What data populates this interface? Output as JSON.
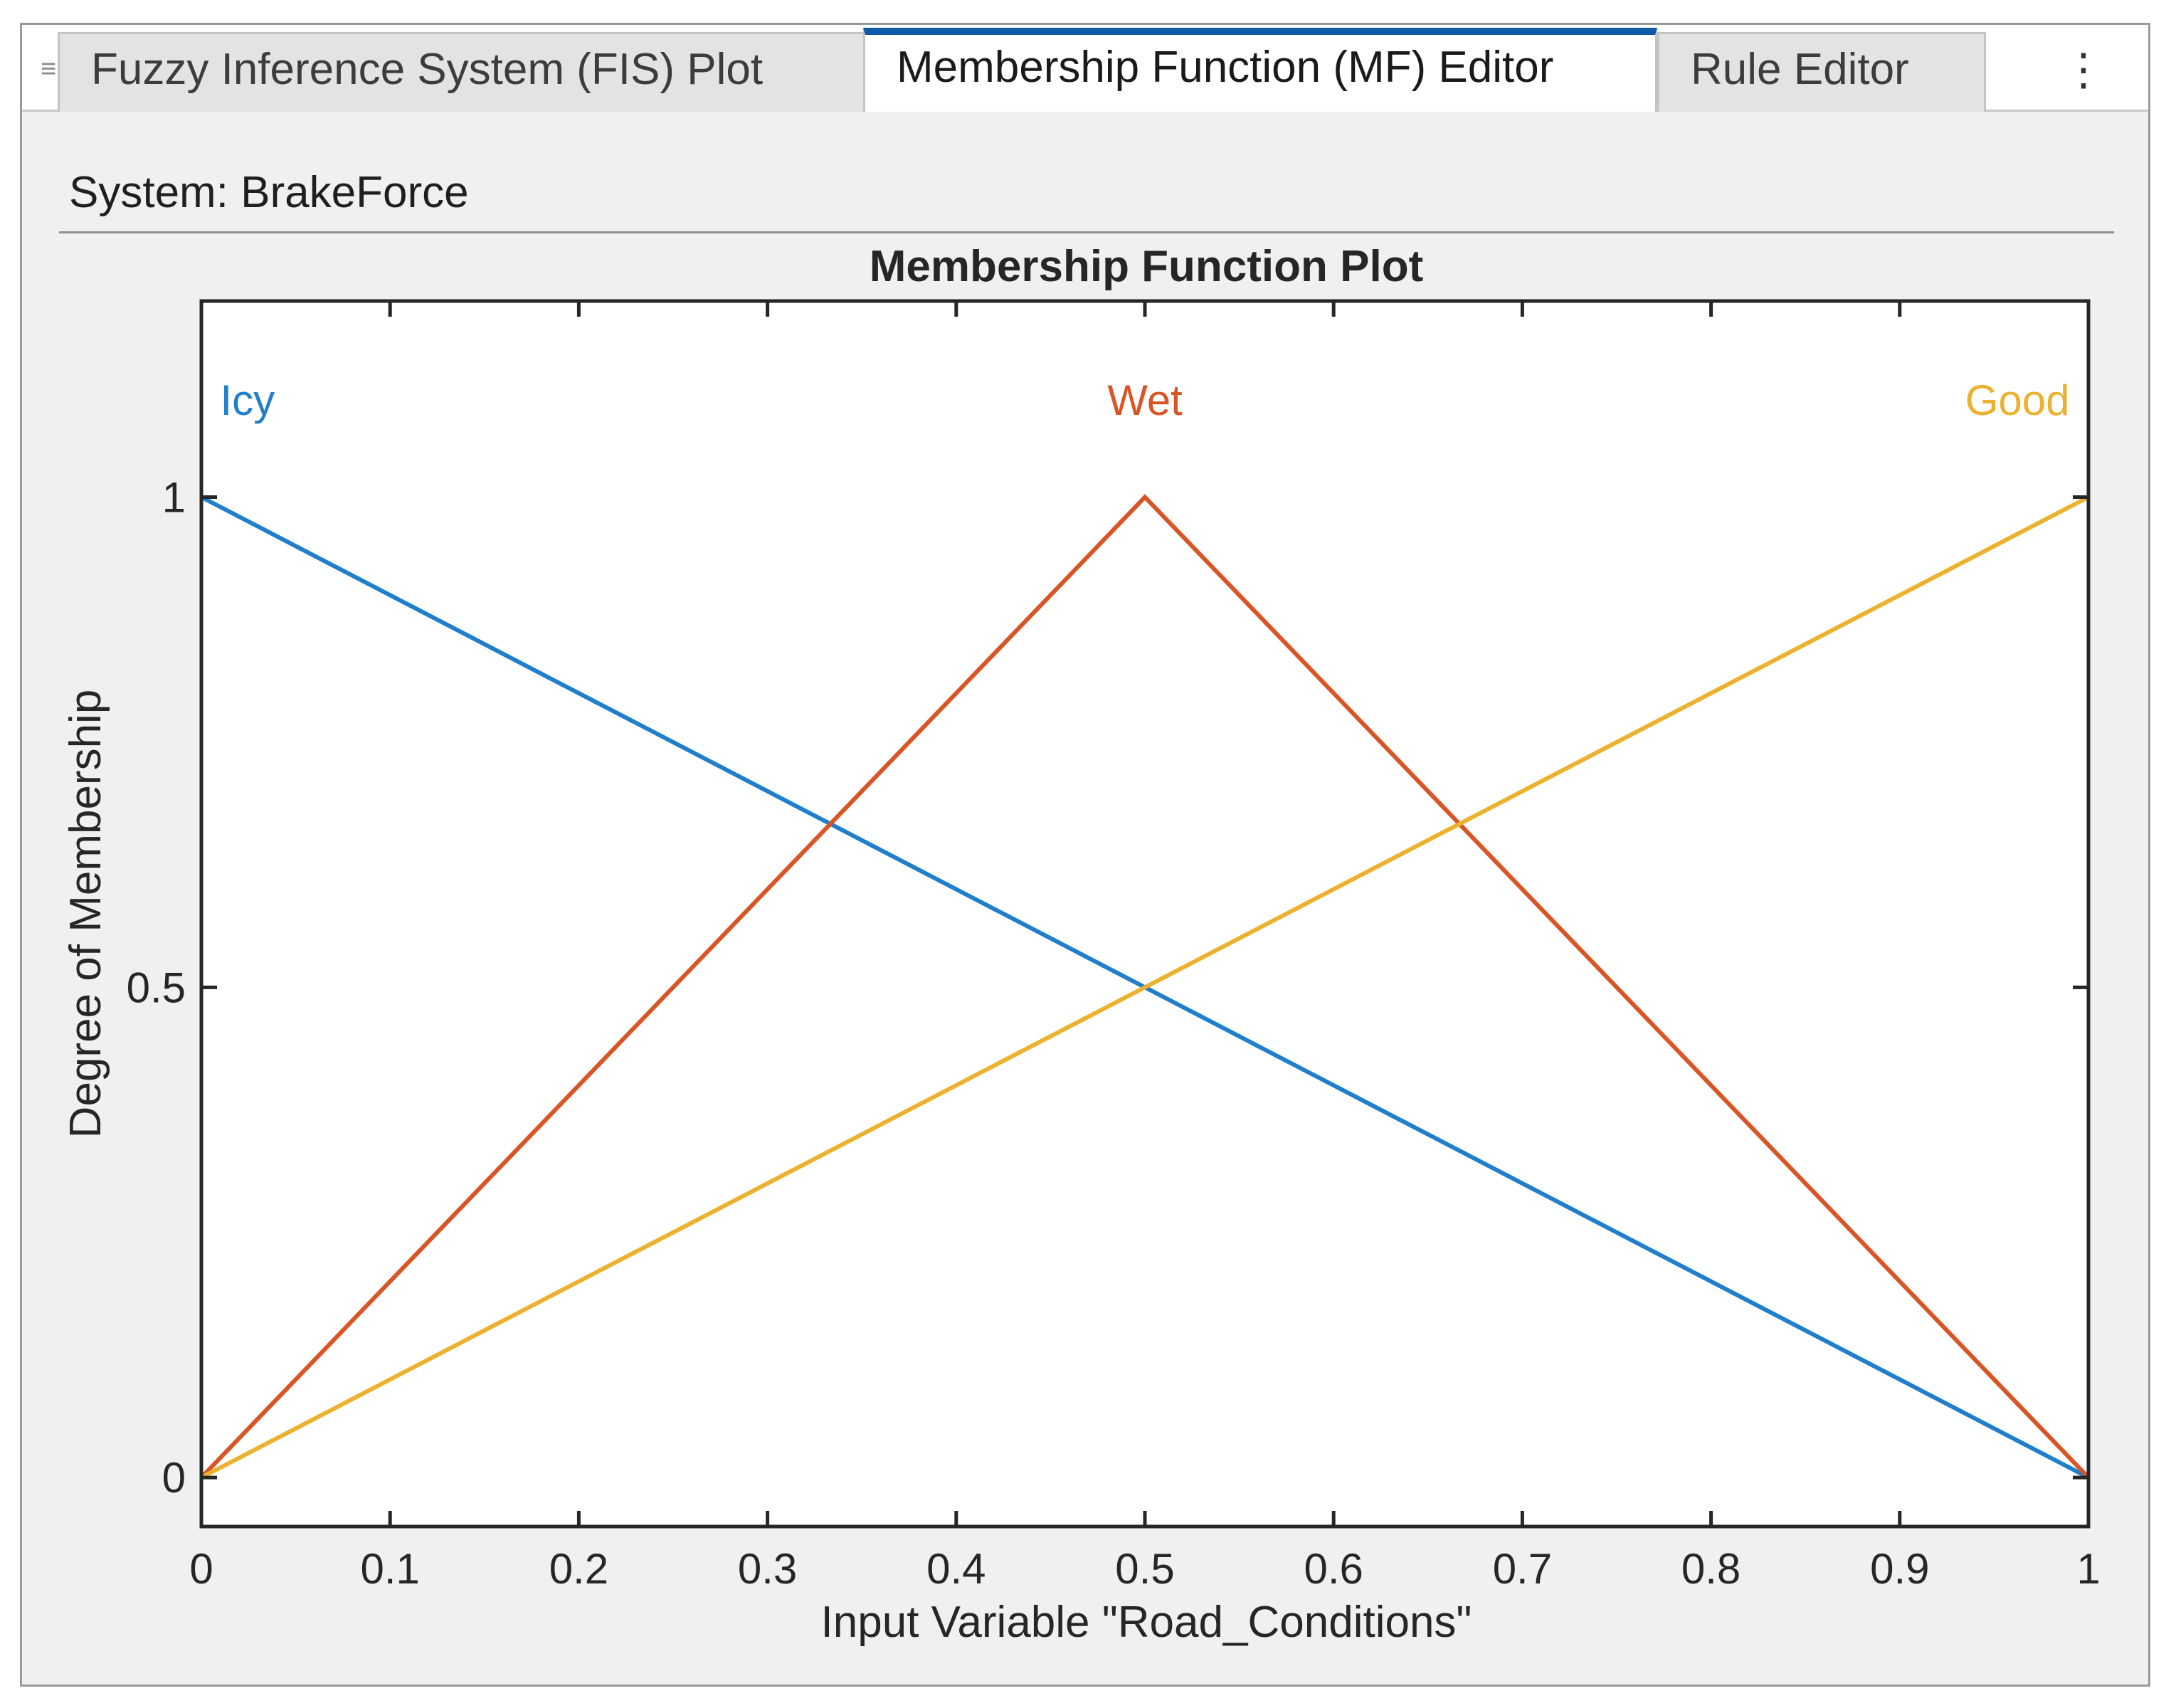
{
  "tabs": [
    {
      "label": "Fuzzy Inference System (FIS) Plot",
      "active": false
    },
    {
      "label": "Membership Function (MF) Editor",
      "active": true
    },
    {
      "label": "Rule Editor",
      "active": false
    }
  ],
  "menu_icon": "more-vertical-icon",
  "menu_glyph": "⋮",
  "grip_glyph": "≡",
  "system": {
    "label": "System: BrakeForce"
  },
  "colors": {
    "active_tab_accent": "#0e5aa7",
    "icy": "#1f7fcc",
    "wet": "#d95525",
    "good": "#ecb22f"
  },
  "chart_data": {
    "type": "line",
    "title": "Membership Function Plot",
    "xlabel": "Input Variable \"Road_Conditions\"",
    "ylabel": "Degree of Membership",
    "xlim": [
      0,
      1
    ],
    "ylim": [
      -0.05,
      1.2
    ],
    "xticks": [
      0,
      0.1,
      0.2,
      0.3,
      0.4,
      0.5,
      0.6,
      0.7,
      0.8,
      0.9,
      1
    ],
    "xtick_labels": [
      "0",
      "0.1",
      "0.2",
      "0.3",
      "0.4",
      "0.5",
      "0.6",
      "0.7",
      "0.8",
      "0.9",
      "1"
    ],
    "yticks": [
      0,
      0.5,
      1
    ],
    "ytick_labels": [
      "0",
      "0.5",
      "1"
    ],
    "grid": false,
    "series": [
      {
        "name": "Icy",
        "color": "#1f7fcc",
        "x": [
          0,
          1
        ],
        "y": [
          1,
          0
        ],
        "label_x": 0.01
      },
      {
        "name": "Wet",
        "color": "#d95525",
        "x": [
          0,
          0.5,
          1
        ],
        "y": [
          0,
          1,
          0
        ],
        "label_x": 0.5
      },
      {
        "name": "Good",
        "color": "#ecb22f",
        "x": [
          0,
          1
        ],
        "y": [
          0,
          1
        ],
        "label_x": 0.99
      }
    ]
  }
}
